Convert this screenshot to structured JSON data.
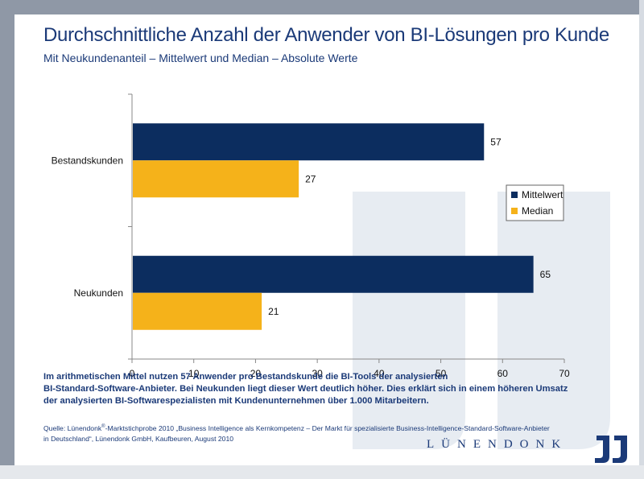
{
  "title": "Durchschnittliche Anzahl der Anwender von BI-Lösungen pro Kunde",
  "subtitle": "Mit Neukundenanteil – Mittelwert und Median – Absolute Werte",
  "chart_data": {
    "type": "bar",
    "orientation": "horizontal",
    "categories": [
      "Bestandskunden",
      "Neukunden"
    ],
    "series": [
      {
        "name": "Mittelwert",
        "values": [
          57,
          65
        ],
        "color": "#0c2d5f"
      },
      {
        "name": "Median",
        "values": [
          27,
          21
        ],
        "color": "#f5b21a"
      }
    ],
    "xlim": [
      0,
      70
    ],
    "xticks": [
      0,
      10,
      20,
      30,
      40,
      50,
      60,
      70
    ],
    "legend": "right",
    "grid": false
  },
  "note": {
    "lines": [
      "Im arithmetischen Mittel nutzen 57 Anwender pro Bestandskunde die BI-Tools der analysierten",
      "BI-Standard-Software-Anbieter. Bei Neukunden liegt dieser Wert deutlich höher. Dies erklärt sich in einem höheren Umsatz",
      "der analysierten BI-Softwarespezialisten mit Kundenunternehmen über 1.000 Mitarbeitern."
    ]
  },
  "source": {
    "prefix": "Quelle: Lünendonk",
    "reg": "®",
    "line1_rest": "-Marktstichprobe 2010 „Business Intelligence als Kernkompetenz – Der Markt für spezialisierte Business-Intelligence-Standard-Software-Anbieter",
    "line2": "in Deutschland“, Lünendonk GmbH, Kaufbeuren, August 2010"
  },
  "logo": {
    "text": "LÜNENDONK"
  },
  "colors": {
    "navy": "#0c2d5f",
    "gold": "#f5b21a",
    "text": "#1b3a78"
  }
}
